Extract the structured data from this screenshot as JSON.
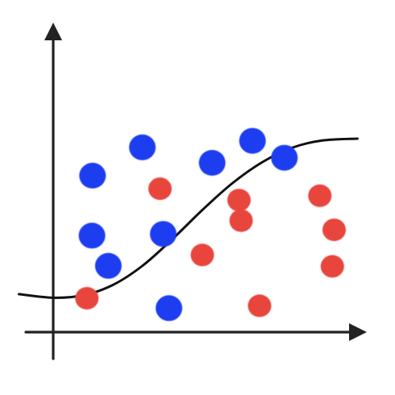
{
  "chart_data": {
    "type": "scatter",
    "title": "",
    "xlabel": "",
    "ylabel": "",
    "grid": false,
    "legend": "none",
    "xlim": [
      0,
      10
    ],
    "ylim": [
      0,
      10
    ],
    "series": [
      {
        "color": "#1f3cf0",
        "points": [
          [
            1.32,
            6.47
          ],
          [
            2.99,
            7.64
          ],
          [
            5.33,
            7.0
          ],
          [
            6.68,
            7.91
          ],
          [
            7.75,
            7.21
          ],
          [
            1.3,
            3.99
          ],
          [
            3.69,
            4.06
          ],
          [
            1.85,
            2.74
          ],
          [
            3.88,
            0.99
          ]
        ]
      },
      {
        "color": "#e8453c",
        "points": [
          [
            3.58,
            5.93
          ],
          [
            6.23,
            5.46
          ],
          [
            6.3,
            4.61
          ],
          [
            8.94,
            5.64
          ],
          [
            9.42,
            4.23
          ],
          [
            5.0,
            3.19
          ],
          [
            9.36,
            2.72
          ],
          [
            1.13,
            1.4
          ],
          [
            6.92,
            1.09
          ]
        ]
      }
    ],
    "curve": {
      "color": "#111111",
      "points": [
        [
          -1.15,
          1.57
        ],
        [
          0.0,
          1.42
        ],
        [
          1.0,
          1.52
        ],
        [
          2.0,
          1.95
        ],
        [
          3.0,
          2.75
        ],
        [
          4.0,
          3.85
        ],
        [
          5.0,
          5.05
        ],
        [
          6.0,
          6.15
        ],
        [
          7.0,
          7.02
        ],
        [
          8.0,
          7.62
        ],
        [
          9.0,
          7.92
        ],
        [
          10.2,
          8.0
        ]
      ]
    }
  }
}
